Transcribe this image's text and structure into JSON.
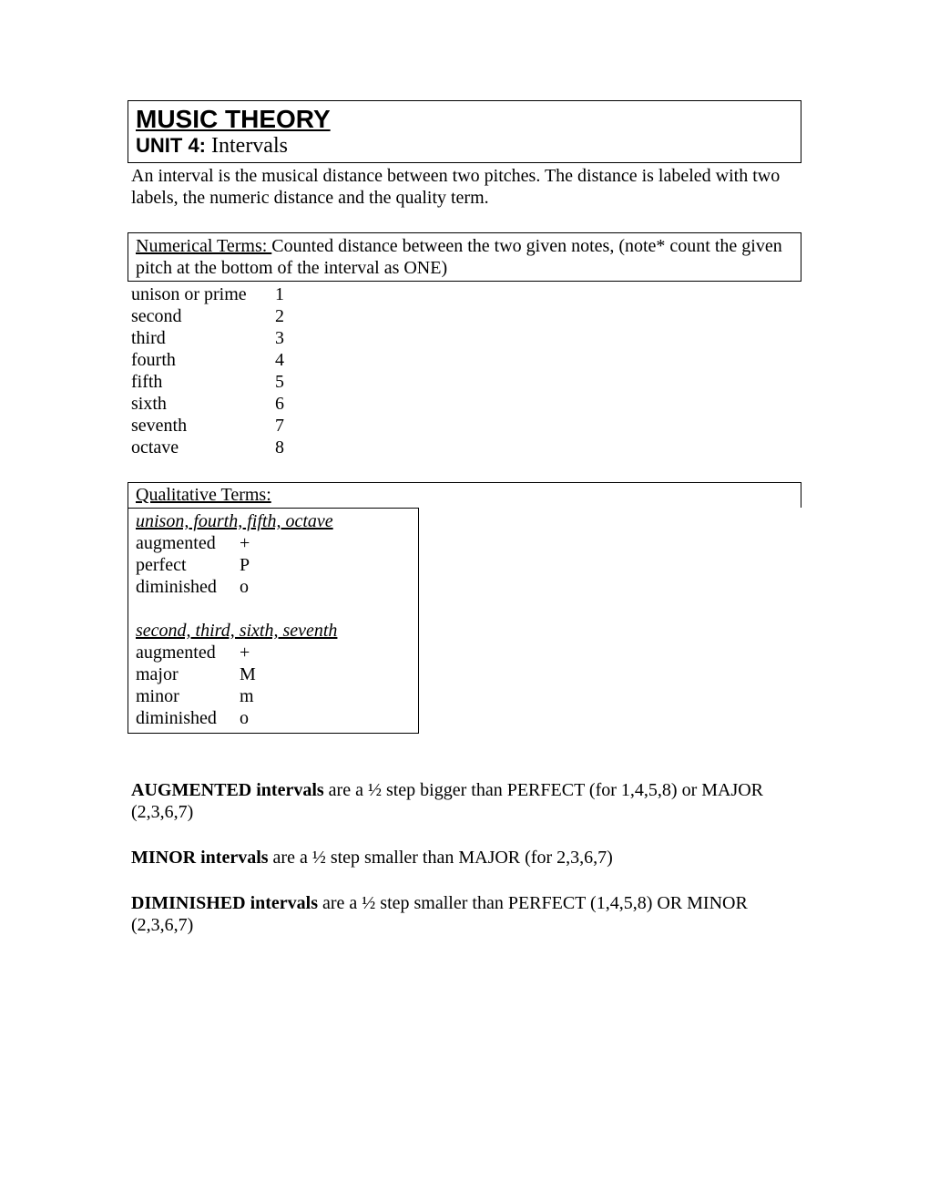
{
  "header": {
    "main_title": "MUSIC THEORY",
    "unit_label": "UNIT 4:",
    "unit_name": " Intervals"
  },
  "intro": "An interval is the musical distance between two pitches.  The distance is labeled with two labels, the numeric distance and the quality term.",
  "numerical": {
    "heading_prefix": "Numerical Terms:  ",
    "heading_text": "Counted distance between the two given notes, (note* count the given pitch at the bottom of the interval as ONE)",
    "terms": [
      {
        "name": "unison or prime",
        "value": "1"
      },
      {
        "name": "second",
        "value": "2"
      },
      {
        "name": "third",
        "value": "3"
      },
      {
        "name": "fourth",
        "value": "4"
      },
      {
        "name": "fifth",
        "value": "5"
      },
      {
        "name": "sixth",
        "value": "6"
      },
      {
        "name": "seventh",
        "value": "7"
      },
      {
        "name": "octave",
        "value": "8"
      }
    ]
  },
  "qualitative": {
    "heading": "Qualitative Terms:",
    "group1": {
      "title": "unison, fourth, fifth, octave",
      "terms": [
        {
          "name": "augmented",
          "value": "+"
        },
        {
          "name": "perfect",
          "value": "P"
        },
        {
          "name": "diminished",
          "value": "o"
        }
      ]
    },
    "group2": {
      "title": "second, third, sixth, seventh",
      "terms": [
        {
          "name": "augmented",
          "value": "+"
        },
        {
          "name": "major",
          "value": "M"
        },
        {
          "name": "minor",
          "value": "m"
        },
        {
          "name": "diminished",
          "value": "o"
        }
      ]
    }
  },
  "definitions": {
    "aug": {
      "bold": "AUGMENTED intervals",
      "text": " are a ½ step bigger than PERFECT (for 1,4,5,8) or MAJOR (2,3,6,7)"
    },
    "minor": {
      "bold": "MINOR intervals",
      "text": " are a ½ step smaller than MAJOR (for 2,3,6,7)"
    },
    "dim": {
      "bold": "DIMINISHED intervals",
      "text": " are a ½ step smaller than PERFECT (1,4,5,8)  OR MINOR (2,3,6,7)"
    }
  }
}
